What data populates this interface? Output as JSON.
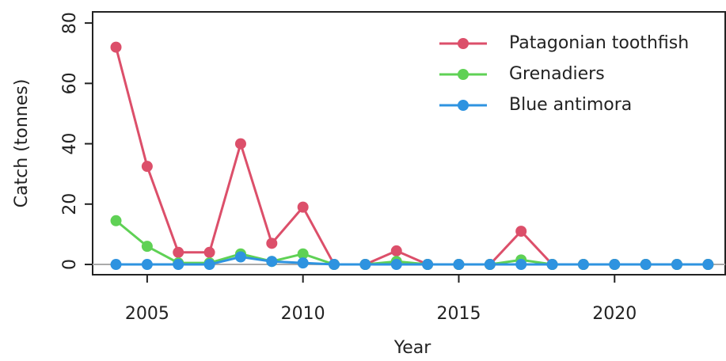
{
  "chart_data": {
    "type": "line",
    "x_label": "Year",
    "y_label": "Catch (tonnes)",
    "x": [
      2004,
      2005,
      2006,
      2007,
      2008,
      2009,
      2010,
      2011,
      2012,
      2013,
      2014,
      2015,
      2016,
      2017,
      2018,
      2019,
      2020,
      2021,
      2022,
      2023
    ],
    "series": [
      {
        "name": "Patagonian toothfish",
        "color": "#dc4f6a",
        "values": [
          72,
          32.5,
          4,
          4,
          40,
          7,
          19,
          0,
          0,
          4.5,
          0,
          0,
          0,
          11,
          0,
          0,
          0,
          0,
          0,
          0
        ]
      },
      {
        "name": "Grenadiers",
        "color": "#5fd155",
        "values": [
          14.5,
          6,
          0.5,
          0.5,
          3.5,
          1,
          3.5,
          0,
          0,
          1,
          0,
          0,
          0,
          1.5,
          0,
          0,
          0,
          0,
          0,
          0
        ]
      },
      {
        "name": "Blue antimora",
        "color": "#2e93e0",
        "values": [
          0,
          0,
          0,
          0,
          2.5,
          1,
          0.5,
          0,
          0,
          0,
          0,
          0,
          0,
          0,
          0,
          0,
          0,
          0,
          0,
          0
        ]
      }
    ],
    "xlim": [
      2003.25,
      2023.55
    ],
    "ylim": [
      -3.4,
      83.7
    ],
    "xticks": [
      2005,
      2010,
      2015,
      2020
    ],
    "yticks": [
      0,
      20,
      40,
      60,
      80
    ],
    "hline": 0,
    "legend": "top-right"
  }
}
